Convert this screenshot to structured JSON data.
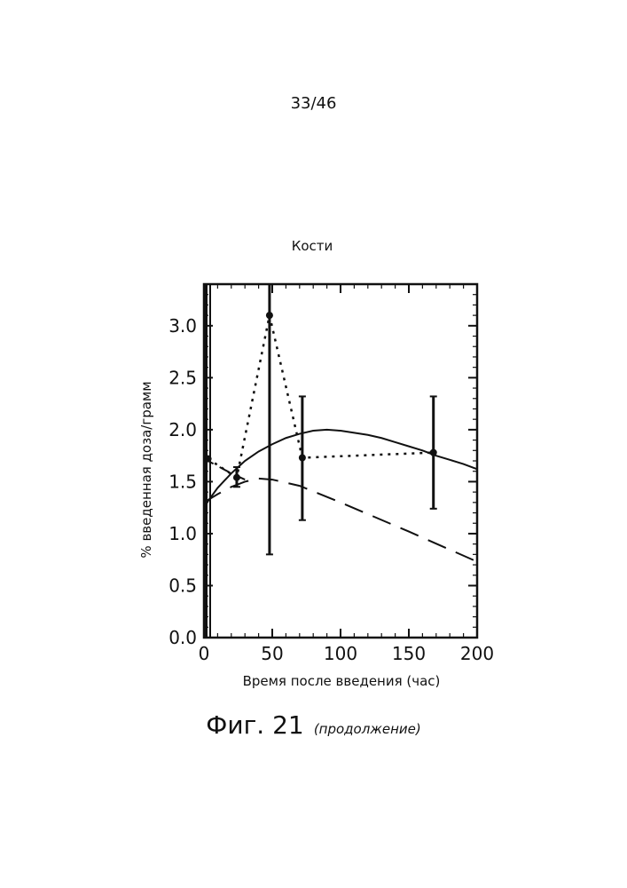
{
  "page": {
    "number": "33/46"
  },
  "caption": {
    "main": "Фиг. 21",
    "sub": "(продолжение)"
  },
  "chart_data": {
    "type": "line",
    "title": "Кости",
    "xlabel": "Время после введения (час)",
    "ylabel": "% введенная доза/грамм",
    "xlim": [
      0,
      200
    ],
    "ylim": [
      0,
      3.4
    ],
    "x_ticks": [
      "0",
      "50",
      "100",
      "150",
      "200"
    ],
    "y_ticks": [
      "0.0",
      "0.5",
      "1.0",
      "1.5",
      "2.0",
      "2.5",
      "3.0"
    ],
    "grid": false,
    "series": [
      {
        "style": "dotted",
        "x": [
          3,
          24,
          48,
          72,
          168
        ],
        "y": [
          1.72,
          1.54,
          3.1,
          1.73,
          1.78
        ],
        "error_low": [
          null,
          1.45,
          0.8,
          1.13,
          1.24
        ],
        "error_high": [
          null,
          1.64,
          3.4,
          2.32,
          2.32
        ]
      },
      {
        "style": "solid",
        "x": [
          0,
          10,
          20,
          30,
          40,
          50,
          60,
          70,
          80,
          90,
          100,
          110,
          120,
          130,
          140,
          150,
          160,
          170,
          180,
          190,
          200
        ],
        "y": [
          1.26,
          1.44,
          1.58,
          1.7,
          1.79,
          1.86,
          1.92,
          1.96,
          1.99,
          2.0,
          1.99,
          1.97,
          1.95,
          1.92,
          1.88,
          1.84,
          1.8,
          1.75,
          1.71,
          1.67,
          1.62
        ]
      },
      {
        "style": "dashed",
        "x": [
          0,
          10,
          20,
          30,
          40,
          50,
          70,
          100,
          150,
          200
        ],
        "y": [
          1.3,
          1.38,
          1.45,
          1.5,
          1.53,
          1.52,
          1.46,
          1.3,
          1.02,
          0.73
        ]
      },
      {
        "style": "dashed-short",
        "x": [
          0,
          10,
          20,
          30
        ],
        "y": [
          1.72,
          1.65,
          1.58,
          1.52
        ]
      }
    ]
  }
}
